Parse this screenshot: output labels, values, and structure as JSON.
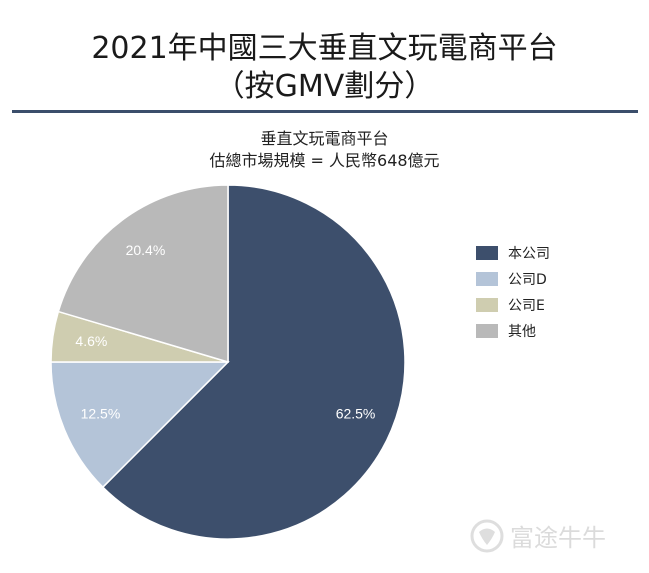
{
  "title": {
    "line1": "2021年中國三大垂直文玩電商平台",
    "line2": "（按GMV劃分）"
  },
  "subtitle": {
    "line1": "垂直文玩電商平台",
    "line2": "估總市場規模 = 人民幣648億元"
  },
  "chart_data": {
    "type": "pie",
    "categories": [
      "本公司",
      "公司D",
      "公司E",
      "其他"
    ],
    "values": [
      62.5,
      12.5,
      4.6,
      20.4
    ],
    "labels": [
      "62.5%",
      "12.5%",
      "4.6%",
      "20.4%"
    ],
    "colors": [
      "#3d4f6c",
      "#b4c4d8",
      "#cfcdb0",
      "#b9b9b9"
    ],
    "label_colors": [
      "#ffffff",
      "#ffffff",
      "#ffffff",
      "#ffffff"
    ],
    "start_angle_deg": 0,
    "direction": "clockwise",
    "legend_position": "right"
  },
  "watermark": {
    "text": "富途牛牛",
    "icon": "futu-bull-logo-icon"
  }
}
